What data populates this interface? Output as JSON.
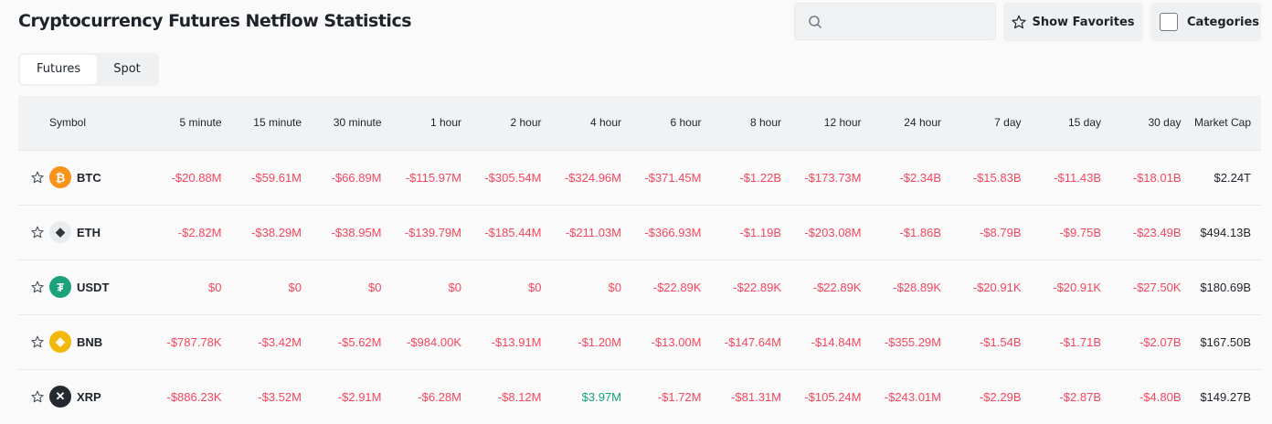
{
  "title": "Cryptocurrency Futures Netflow Statistics",
  "search": {
    "placeholder": ""
  },
  "buttons": {
    "favorites": "Show Favorites",
    "categories": "Categories"
  },
  "tabs": [
    {
      "label": "Futures",
      "active": true
    },
    {
      "label": "Spot",
      "active": false
    }
  ],
  "colors": {
    "negative": "#f6465d",
    "positive": "#12a37a"
  },
  "columns": [
    "Symbol",
    "5 minute",
    "15 minute",
    "30 minute",
    "1 hour",
    "2 hour",
    "4 hour",
    "6 hour",
    "8 hour",
    "12 hour",
    "24 hour",
    "7 day",
    "15 day",
    "30 day",
    "Market Cap"
  ],
  "rows": [
    {
      "symbol": "BTC",
      "icon": "bitcoin-icon",
      "color": "#f7931a",
      "values": [
        "-$20.88M",
        "-$59.61M",
        "-$66.89M",
        "-$115.97M",
        "-$305.54M",
        "-$324.96M",
        "-$371.45M",
        "-$1.22B",
        "-$173.73M",
        "-$2.34B",
        "-$15.83B",
        "-$11.43B",
        "-$18.01B"
      ],
      "market_cap": "$2.24T"
    },
    {
      "symbol": "ETH",
      "icon": "ethereum-icon",
      "color": "#e9ecef",
      "values": [
        "-$2.82M",
        "-$38.29M",
        "-$38.95M",
        "-$139.79M",
        "-$185.44M",
        "-$211.03M",
        "-$366.93M",
        "-$1.19B",
        "-$203.08M",
        "-$1.86B",
        "-$8.79B",
        "-$9.75B",
        "-$23.49B"
      ],
      "market_cap": "$494.13B"
    },
    {
      "symbol": "USDT",
      "icon": "tether-icon",
      "color": "#1ba27a",
      "values": [
        "$0",
        "$0",
        "$0",
        "$0",
        "$0",
        "$0",
        "-$22.89K",
        "-$22.89K",
        "-$22.89K",
        "-$28.89K",
        "-$20.91K",
        "-$20.91K",
        "-$27.50K"
      ],
      "market_cap": "$180.69B"
    },
    {
      "symbol": "BNB",
      "icon": "bnb-icon",
      "color": "#f0b90b",
      "values": [
        "-$787.78K",
        "-$3.42M",
        "-$5.62M",
        "-$984.00K",
        "-$13.91M",
        "-$1.20M",
        "-$13.00M",
        "-$147.64M",
        "-$14.84M",
        "-$355.29M",
        "-$1.54B",
        "-$1.71B",
        "-$2.07B"
      ],
      "market_cap": "$167.50B"
    },
    {
      "symbol": "XRP",
      "icon": "xrp-icon",
      "color": "#23292f",
      "values": [
        "-$886.23K",
        "-$3.52M",
        "-$2.91M",
        "-$6.28M",
        "-$8.12M",
        "$3.97M",
        "-$1.72M",
        "-$81.31M",
        "-$105.24M",
        "-$243.01M",
        "-$2.29B",
        "-$2.87B",
        "-$4.80B"
      ],
      "market_cap": "$149.27B"
    }
  ]
}
